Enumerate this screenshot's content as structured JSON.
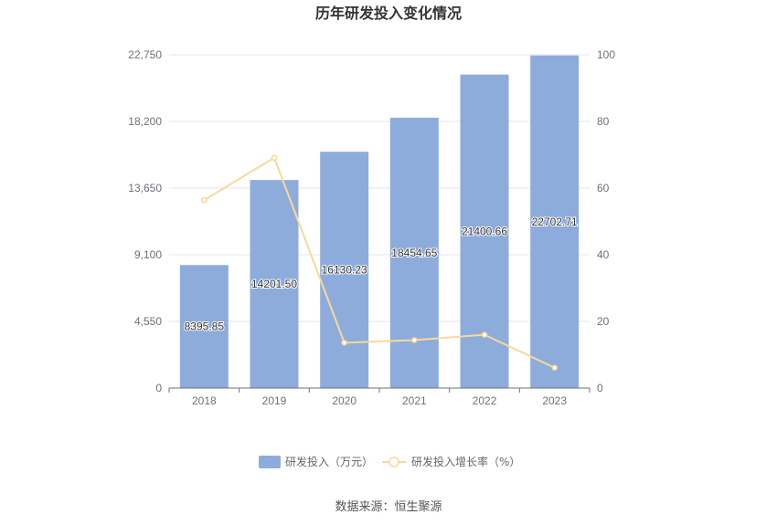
{
  "chart_data": {
    "type": "bar",
    "title": "历年研发投入变化情况",
    "categories": [
      "2018",
      "2019",
      "2020",
      "2021",
      "2022",
      "2023"
    ],
    "series": [
      {
        "name": "研发投入（万元）",
        "type": "bar",
        "axis": "left",
        "color": "#8eacdb",
        "values": [
          8395.85,
          14201.5,
          16130.23,
          18454.65,
          21400.66,
          22702.71
        ],
        "labels": [
          "8395.85",
          "14201.50",
          "16130.23",
          "18454.65",
          "21400.66",
          "22702.71"
        ]
      },
      {
        "name": "研发投入增长率（%）",
        "type": "line",
        "axis": "right",
        "color": "#f9d89b",
        "values": [
          56.4,
          69.1,
          13.6,
          14.4,
          16.0,
          6.1
        ]
      }
    ],
    "y_left": {
      "min": 0,
      "max": 22750,
      "ticks": [
        "0",
        "4,550",
        "9,100",
        "13,650",
        "18,200",
        "22,750"
      ]
    },
    "y_right": {
      "min": 0,
      "max": 100,
      "ticks": [
        "0",
        "20",
        "40",
        "60",
        "80",
        "100"
      ]
    },
    "grid": true,
    "legend_position": "bottom"
  },
  "source_text": "数据来源：恒生聚源"
}
